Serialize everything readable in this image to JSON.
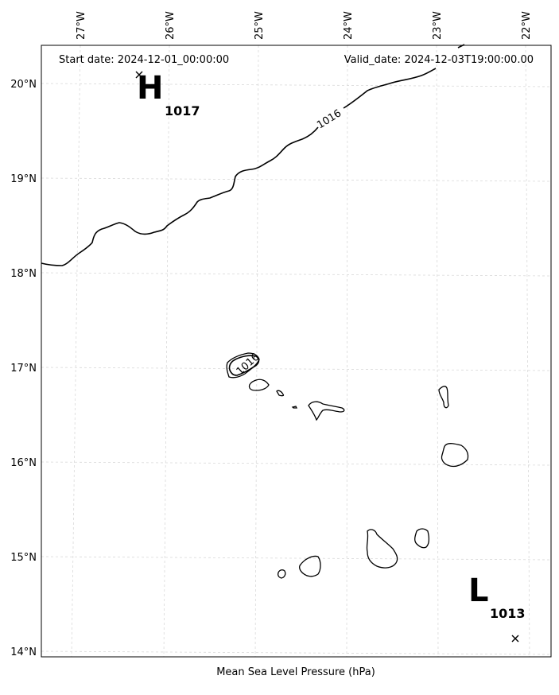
{
  "header": {
    "start_date": "Start date: 2024-12-01_00:00:00",
    "valid_date": "Valid_date: 2024-12-03T19:00:00.00"
  },
  "caption": "Mean Sea Level Pressure (hPa)",
  "lon_ticks": [
    "27°W",
    "26°W",
    "25°W",
    "24°W",
    "23°W",
    "22°W"
  ],
  "lat_ticks": [
    "20°N",
    "19°N",
    "18°N",
    "17°N",
    "16°N",
    "15°N",
    "14°N"
  ],
  "high": {
    "letter": "H",
    "value": "1017"
  },
  "low": {
    "letter": "L",
    "value": "1013"
  },
  "contours": {
    "north": "1016",
    "island": "1016"
  },
  "colors": {
    "gridline": "#d9d9d9",
    "frame": "#000000",
    "coast": "#000000",
    "contour": "#000000"
  }
}
